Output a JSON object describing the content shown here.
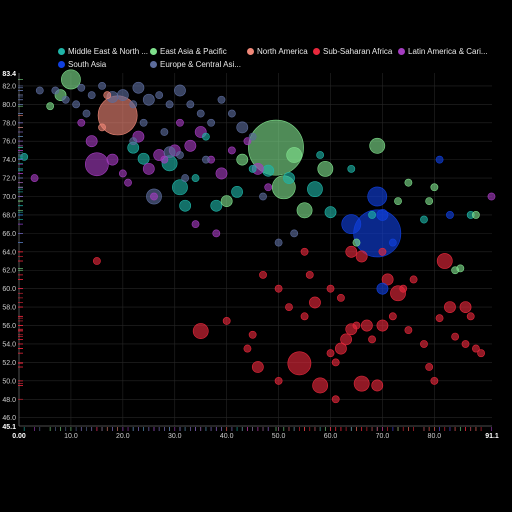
{
  "chart_data": {
    "type": "scatter",
    "xlim": [
      0.0,
      91.1
    ],
    "ylim": [
      45.1,
      83.4
    ],
    "xlim_labels": [
      "0.00",
      "91.1"
    ],
    "ylim_labels": [
      "45.1",
      "83.4"
    ],
    "x_ticks": [
      "10.0",
      "20.0",
      "30.0",
      "40.0",
      "50.0",
      "60.0",
      "70.0",
      "80.0"
    ],
    "x_tick_values": [
      10,
      20,
      30,
      40,
      50,
      60,
      70,
      80
    ],
    "y_ticks": [
      "46.0",
      "48.0",
      "50.0",
      "52.0",
      "54.0",
      "56.0",
      "58.0",
      "60.0",
      "62.0",
      "64.0",
      "66.0",
      "68.0",
      "70.0",
      "72.0",
      "74.0",
      "76.0",
      "78.0",
      "80.0",
      "82.0"
    ],
    "y_tick_values": [
      46,
      48,
      50,
      52,
      54,
      56,
      58,
      60,
      62,
      64,
      66,
      68,
      70,
      72,
      74,
      76,
      78,
      80,
      82
    ],
    "grid": true,
    "legend_position": "top",
    "series": [
      {
        "name": "Middle East & North ...",
        "color": "#1fb5a8",
        "points": [
          [
            1,
            74.3,
            1
          ],
          [
            22,
            75.3,
            2
          ],
          [
            24,
            74.1,
            2
          ],
          [
            29,
            73.6,
            3
          ],
          [
            31,
            71,
            3
          ],
          [
            32,
            69,
            2
          ],
          [
            34,
            72,
            1
          ],
          [
            38,
            69,
            2
          ],
          [
            42,
            70.5,
            2
          ],
          [
            45,
            73,
            1
          ],
          [
            48,
            72.8,
            2
          ],
          [
            52,
            72,
            2
          ],
          [
            57,
            70.8,
            3
          ],
          [
            60,
            68.3,
            2
          ],
          [
            64,
            73,
            1
          ],
          [
            68,
            68,
            1
          ],
          [
            78,
            67.5,
            1
          ],
          [
            87,
            68,
            1
          ],
          [
            36,
            76.5,
            1
          ],
          [
            58,
            74.5,
            1
          ]
        ]
      },
      {
        "name": "East Asia & Pacific",
        "color": "#7fe08c",
        "points": [
          [
            49.5,
            75.3,
            13
          ],
          [
            59,
            73,
            3
          ],
          [
            10,
            82.7,
            4
          ],
          [
            8,
            81,
            2
          ],
          [
            6,
            79.8,
            1
          ],
          [
            53,
            74.5,
            3
          ],
          [
            55,
            68.5,
            3
          ],
          [
            51,
            71,
            5
          ],
          [
            69,
            75.5,
            3
          ],
          [
            73,
            69.5,
            1
          ],
          [
            79,
            69.5,
            1
          ],
          [
            85,
            62.2,
            1
          ],
          [
            65,
            65,
            1
          ],
          [
            75,
            71.5,
            1
          ],
          [
            43,
            74,
            2
          ],
          [
            40,
            69.5,
            2
          ],
          [
            84,
            62,
            1
          ],
          [
            80,
            71,
            1
          ],
          [
            88,
            68,
            1
          ]
        ]
      },
      {
        "name": "North America",
        "color": "#f08878",
        "points": [
          [
            19,
            78.8,
            9
          ],
          [
            17,
            81,
            1
          ],
          [
            16,
            77.5,
            1
          ]
        ]
      },
      {
        "name": "Sub-Saharan Africa",
        "color": "#e8283c",
        "points": [
          [
            35,
            55.4,
            3
          ],
          [
            46,
            51.5,
            2
          ],
          [
            54,
            51.9,
            5
          ],
          [
            58,
            49.5,
            3
          ],
          [
            57,
            58.5,
            2
          ],
          [
            56,
            61.5,
            1
          ],
          [
            60,
            53,
            1
          ],
          [
            61,
            52,
            1
          ],
          [
            62,
            53.5,
            2
          ],
          [
            63,
            54.5,
            2
          ],
          [
            64,
            55.6,
            2
          ],
          [
            65,
            56,
            1
          ],
          [
            66,
            49.7,
            3
          ],
          [
            67,
            56,
            2
          ],
          [
            68,
            54.5,
            1
          ],
          [
            69,
            49.5,
            2
          ],
          [
            70,
            56,
            2
          ],
          [
            72,
            57,
            1
          ],
          [
            73,
            59.5,
            3
          ],
          [
            74,
            60,
            1
          ],
          [
            75,
            55.5,
            1
          ],
          [
            76,
            61,
            1
          ],
          [
            79,
            51.5,
            1
          ],
          [
            80,
            50,
            1
          ],
          [
            81,
            56.8,
            1
          ],
          [
            83,
            58,
            2
          ],
          [
            84,
            54.8,
            1
          ],
          [
            86,
            58,
            2
          ],
          [
            82,
            63,
            3
          ],
          [
            87,
            57,
            1
          ],
          [
            88,
            53.5,
            1
          ],
          [
            89,
            53,
            1
          ],
          [
            60,
            60,
            1
          ],
          [
            62,
            59,
            1
          ],
          [
            64,
            64,
            2
          ],
          [
            66,
            63.5,
            2
          ],
          [
            47,
            61.5,
            1
          ],
          [
            50,
            60,
            1
          ],
          [
            52,
            58,
            1
          ],
          [
            55,
            57,
            1
          ],
          [
            44,
            53.5,
            1
          ],
          [
            40,
            56.5,
            1
          ],
          [
            45,
            55,
            1
          ],
          [
            71,
            61,
            2
          ],
          [
            78,
            54,
            1
          ],
          [
            86,
            54,
            1
          ],
          [
            70,
            64,
            1
          ],
          [
            50,
            50,
            1
          ],
          [
            61,
            48,
            1
          ],
          [
            15,
            63,
            1
          ],
          [
            55,
            64,
            1
          ]
        ]
      },
      {
        "name": "Latin America & Cari...",
        "color": "#a43cc0",
        "points": [
          [
            15,
            73.5,
            5
          ],
          [
            21,
            71.5,
            1
          ],
          [
            23,
            76.5,
            2
          ],
          [
            14,
            76,
            2
          ],
          [
            18,
            74,
            2
          ],
          [
            20,
            72.5,
            1
          ],
          [
            25,
            73,
            2
          ],
          [
            27,
            74.5,
            2
          ],
          [
            30,
            75,
            2
          ],
          [
            33,
            75.5,
            2
          ],
          [
            35,
            77,
            2
          ],
          [
            37,
            74,
            1
          ],
          [
            39,
            72.5,
            2
          ],
          [
            41,
            75,
            1
          ],
          [
            44,
            76,
            1
          ],
          [
            46,
            73,
            2
          ],
          [
            48,
            71,
            1
          ],
          [
            12,
            78,
            1
          ],
          [
            26,
            70,
            1
          ],
          [
            28,
            74,
            1
          ],
          [
            31,
            78,
            1
          ],
          [
            34,
            67,
            1
          ],
          [
            38,
            66,
            1
          ],
          [
            3,
            72,
            1
          ],
          [
            91,
            70,
            1
          ]
        ]
      },
      {
        "name": "South Asia",
        "color": "#1040e0",
        "points": [
          [
            69,
            66,
            11
          ],
          [
            64,
            67,
            4
          ],
          [
            69,
            70,
            4
          ],
          [
            70,
            68,
            2
          ],
          [
            70,
            60,
            2
          ],
          [
            81,
            74,
            1
          ],
          [
            83,
            68,
            1
          ],
          [
            72,
            65,
            1
          ]
        ]
      },
      {
        "name": "Europe & Central Asi...",
        "color": "#5c6c9c",
        "points": [
          [
            4,
            81.5,
            1
          ],
          [
            7,
            81.5,
            1
          ],
          [
            9,
            80.5,
            1
          ],
          [
            11,
            80,
            1
          ],
          [
            12,
            81.8,
            1
          ],
          [
            14,
            81,
            1
          ],
          [
            16,
            82,
            1
          ],
          [
            18,
            80.8,
            2
          ],
          [
            20,
            81,
            2
          ],
          [
            22,
            80,
            1
          ],
          [
            23,
            81.8,
            2
          ],
          [
            25,
            80.5,
            2
          ],
          [
            27,
            81,
            1
          ],
          [
            29,
            80,
            1
          ],
          [
            31,
            81.5,
            2
          ],
          [
            33,
            80,
            1
          ],
          [
            35,
            79,
            1
          ],
          [
            37,
            78,
            1
          ],
          [
            39,
            80.5,
            1
          ],
          [
            41,
            79,
            1
          ],
          [
            43,
            77.5,
            2
          ],
          [
            45,
            76.5,
            1
          ],
          [
            29,
            74.8,
            2
          ],
          [
            31,
            74.5,
            1
          ],
          [
            26,
            70,
            3
          ],
          [
            47,
            70,
            1
          ],
          [
            50,
            65,
            1
          ],
          [
            53,
            66,
            1
          ],
          [
            24,
            78,
            1
          ],
          [
            22,
            76,
            1
          ],
          [
            28,
            77,
            1
          ],
          [
            32,
            72,
            1
          ],
          [
            36,
            74,
            1
          ],
          [
            13,
            79,
            1
          ]
        ]
      }
    ]
  }
}
